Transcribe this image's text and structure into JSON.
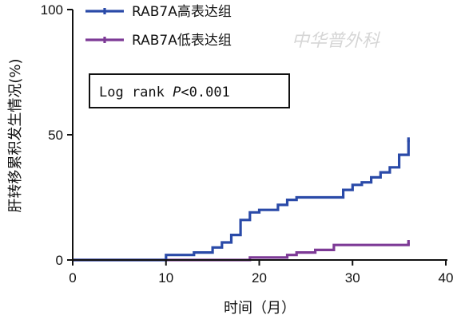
{
  "chart_data": {
    "type": "line",
    "step": true,
    "xlabel": "时间（月）",
    "ylabel": "肝转移累积发生情况(%)",
    "xlim": [
      0,
      40
    ],
    "ylim": [
      0,
      100
    ],
    "xticks": [
      "0",
      "10",
      "20",
      "30",
      "40"
    ],
    "yticks": [
      "0",
      "50",
      "100"
    ],
    "grid": false,
    "legend_position": "top-left",
    "annotation": {
      "prefix": "Log rank ",
      "italic": "P",
      "suffix": "<0.001"
    },
    "watermark": "中华普外科",
    "series": [
      {
        "name": "RAB7A高表达组",
        "color": "#2a4aa8",
        "x": [
          0,
          10,
          10,
          13,
          13,
          15,
          15,
          16,
          16,
          17,
          17,
          18,
          18,
          19,
          19,
          20,
          20,
          22,
          22,
          23,
          23,
          24,
          24,
          29,
          29,
          30,
          30,
          31,
          31,
          32,
          32,
          33,
          33,
          34,
          34,
          35,
          35,
          36,
          36
        ],
        "y": [
          0,
          0,
          2,
          2,
          3,
          3,
          5,
          5,
          7,
          7,
          10,
          10,
          16,
          16,
          19,
          19,
          20,
          20,
          22,
          22,
          24,
          24,
          25,
          25,
          28,
          28,
          30,
          30,
          31,
          31,
          33,
          33,
          35,
          35,
          37,
          37,
          42,
          42,
          48
        ]
      },
      {
        "name": "RAB7A低表达组",
        "color": "#7d3a96",
        "x": [
          0,
          19,
          19,
          23,
          23,
          24,
          24,
          26,
          26,
          28,
          28,
          36,
          36
        ],
        "y": [
          0,
          0,
          1,
          1,
          2,
          2,
          3,
          3,
          4,
          4,
          6,
          6,
          7
        ]
      }
    ]
  }
}
